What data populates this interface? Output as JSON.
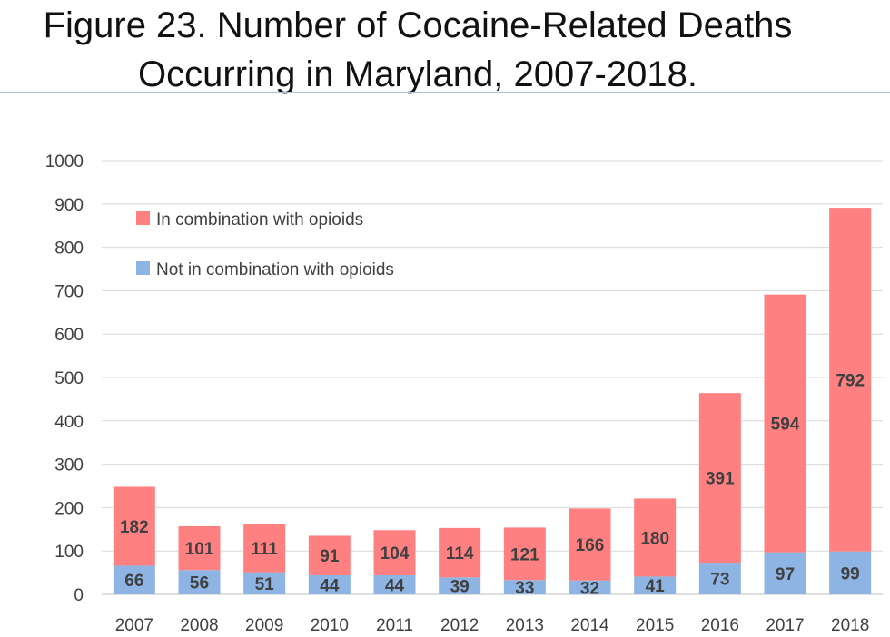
{
  "chart_data": {
    "type": "bar",
    "stacked": true,
    "title_line1": "Figure 23.  Number of Cocaine-Related Deaths",
    "title_line2": "Occurring in Maryland, 2007-2018.",
    "categories": [
      "2007",
      "2008",
      "2009",
      "2010",
      "2011",
      "2012",
      "2013",
      "2014",
      "2015",
      "2016",
      "2017",
      "2018"
    ],
    "series": [
      {
        "name": "Not in combination with opioids",
        "color": "#8db4e2",
        "values": [
          66,
          56,
          51,
          44,
          44,
          39,
          33,
          32,
          41,
          73,
          97,
          99
        ]
      },
      {
        "name": "In combination with opioids",
        "color": "#ff8080",
        "values": [
          182,
          101,
          111,
          91,
          104,
          114,
          121,
          166,
          180,
          391,
          594,
          792
        ]
      }
    ],
    "yticks": [
      "0",
      "100",
      "200",
      "300",
      "400",
      "500",
      "600",
      "700",
      "800",
      "900",
      "1000"
    ],
    "ylim": [
      0,
      1000
    ],
    "grid": true,
    "legend_position": "top-left"
  }
}
